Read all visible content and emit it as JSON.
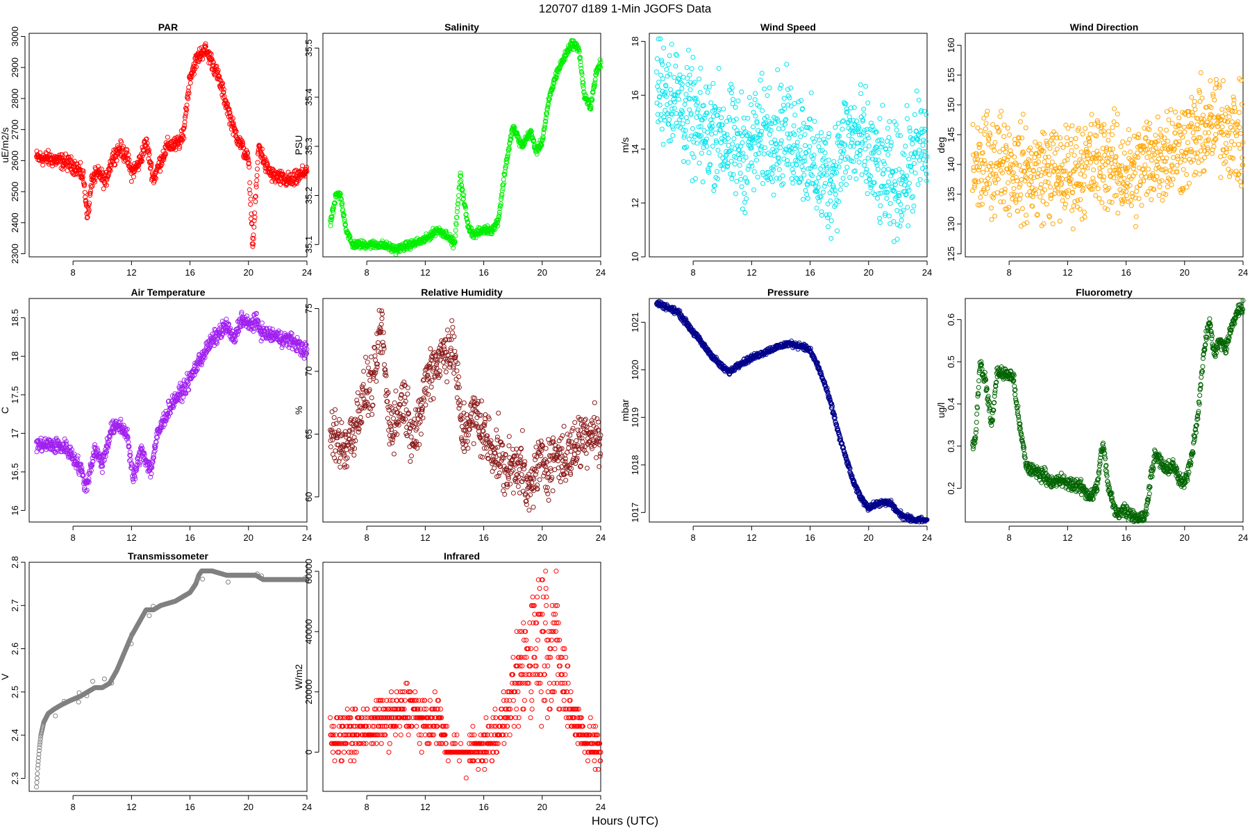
{
  "figure": {
    "title": "120707    d189    1-Min  JGOFS Data",
    "xlabel": "Hours (UTC)"
  },
  "chart_data": [
    {
      "type": "scatter",
      "title": "PAR",
      "ylabel": "uE/m2/s",
      "xlim": [
        5,
        24
      ],
      "xticks": [
        8,
        12,
        16,
        20,
        24
      ],
      "ylim": [
        2290,
        3010
      ],
      "yticks": [
        2300,
        2400,
        2500,
        2600,
        2700,
        2800,
        2900,
        3000
      ],
      "color": "#ff0000",
      "noise": 12,
      "x": [
        5.5,
        6.5,
        7.5,
        8.2,
        8.7,
        9.0,
        9.3,
        9.8,
        10.2,
        10.7,
        11.2,
        11.7,
        12.0,
        12.5,
        13.0,
        13.5,
        14.0,
        14.5,
        15.0,
        15.5,
        16.0,
        16.5,
        17.0,
        17.5,
        18.0,
        18.5,
        19.0,
        19.5,
        20.0,
        20.3,
        20.7,
        21.2,
        21.7,
        22.3,
        23.0,
        23.5,
        24.0
      ],
      "y": [
        2610,
        2605,
        2595,
        2580,
        2550,
        2420,
        2540,
        2560,
        2530,
        2610,
        2640,
        2610,
        2560,
        2590,
        2660,
        2540,
        2600,
        2650,
        2650,
        2670,
        2870,
        2930,
        2960,
        2920,
        2860,
        2780,
        2700,
        2650,
        2600,
        2320,
        2650,
        2580,
        2550,
        2540,
        2535,
        2550,
        2570
      ]
    },
    {
      "type": "scatter",
      "title": "Salinity",
      "ylabel": "PSU",
      "xlim": [
        5,
        24
      ],
      "xticks": [
        8,
        12,
        16,
        20,
        24
      ],
      "ylim": [
        35.075,
        35.53
      ],
      "yticks": [
        35.1,
        35.2,
        35.3,
        35.4,
        35.5
      ],
      "color": "#00ee00",
      "noise": 0.004,
      "x": [
        5.5,
        5.9,
        6.2,
        6.6,
        7.0,
        8.0,
        9.0,
        10.0,
        11.0,
        12.0,
        12.8,
        13.5,
        14.0,
        14.4,
        14.9,
        15.3,
        16.0,
        16.6,
        17.0,
        17.5,
        18.0,
        18.6,
        19.2,
        19.6,
        20.0,
        20.5,
        21.0,
        21.5,
        22.0,
        22.5,
        22.9,
        23.3,
        23.7,
        24.0
      ],
      "y": [
        35.14,
        35.2,
        35.2,
        35.13,
        35.1,
        35.1,
        35.1,
        35.09,
        35.1,
        35.11,
        35.13,
        35.12,
        35.1,
        35.24,
        35.14,
        35.12,
        35.13,
        35.13,
        35.15,
        35.26,
        35.34,
        35.3,
        35.33,
        35.29,
        35.31,
        35.4,
        35.45,
        35.48,
        35.51,
        35.5,
        35.4,
        35.38,
        35.45,
        35.47
      ]
    },
    {
      "type": "scatter",
      "title": "Wind Speed",
      "ylabel": "m/s",
      "xlim": [
        5,
        24
      ],
      "xticks": [
        8,
        12,
        16,
        20,
        24
      ],
      "ylim": [
        10,
        18.3
      ],
      "yticks": [
        10,
        12,
        14,
        16,
        18
      ],
      "color": "#00e5ee",
      "noise": 1.0,
      "x": [
        5.5,
        6.5,
        7.5,
        8.5,
        9.5,
        10.5,
        11.5,
        12.5,
        13.5,
        14.5,
        15.5,
        16.5,
        17.5,
        18.5,
        19.5,
        20.5,
        21.5,
        22.5,
        23.5,
        24.0
      ],
      "y": [
        16.3,
        16.2,
        15.4,
        14.6,
        14.8,
        14.2,
        13.9,
        14.4,
        14.7,
        14.6,
        14.2,
        13.1,
        12.9,
        14.4,
        14.2,
        13.3,
        12.7,
        13.0,
        14.1,
        14.0
      ]
    },
    {
      "type": "scatter",
      "title": "Wind Direction",
      "ylabel": "deg",
      "xlim": [
        5,
        24
      ],
      "xticks": [
        8,
        12,
        16,
        20,
        24
      ],
      "ylim": [
        124.5,
        162
      ],
      "yticks": [
        125,
        130,
        135,
        140,
        145,
        150,
        155,
        160
      ],
      "color": "#ffa500",
      "noise": 4.0,
      "x": [
        5.5,
        6.5,
        7.5,
        8.5,
        9.5,
        10.5,
        11.5,
        12.5,
        13.5,
        14.5,
        15.5,
        16.5,
        17.5,
        18.5,
        19.5,
        20.5,
        21.5,
        22.5,
        23.5,
        24.0
      ],
      "y": [
        139,
        140,
        141,
        139,
        138,
        139,
        138,
        139,
        140,
        141,
        139,
        138,
        141,
        142,
        143,
        144,
        146,
        147,
        145,
        143
      ]
    },
    {
      "type": "scatter",
      "title": "Air Temperature",
      "ylabel": "C",
      "xlim": [
        5,
        24
      ],
      "xticks": [
        8,
        12,
        16,
        20,
        24
      ],
      "ylim": [
        15.85,
        18.75
      ],
      "yticks": [
        16.0,
        16.5,
        17.0,
        17.5,
        18.0,
        18.5
      ],
      "color": "#a020f0",
      "noise": 0.05,
      "x": [
        5.5,
        6.5,
        7.5,
        8.0,
        8.5,
        8.9,
        9.5,
        10.0,
        10.6,
        11.2,
        11.7,
        12.1,
        12.7,
        13.3,
        13.8,
        14.5,
        15.0,
        15.5,
        16.0,
        16.5,
        17.0,
        17.5,
        18.0,
        18.5,
        19.0,
        19.5,
        20.0,
        20.5,
        21.0,
        22.0,
        23.0,
        24.0
      ],
      "y": [
        16.85,
        16.85,
        16.82,
        16.7,
        16.55,
        16.3,
        16.8,
        16.6,
        17.05,
        17.1,
        17.0,
        16.4,
        16.8,
        16.5,
        17.0,
        17.3,
        17.45,
        17.55,
        17.7,
        17.9,
        18.05,
        18.2,
        18.3,
        18.4,
        18.2,
        18.5,
        18.4,
        18.45,
        18.3,
        18.25,
        18.2,
        18.05
      ]
    },
    {
      "type": "scatter",
      "title": "Relative Humidity",
      "ylabel": "%",
      "xlim": [
        5,
        24
      ],
      "xticks": [
        8,
        12,
        16,
        20,
        24
      ],
      "ylim": [
        58,
        75.8
      ],
      "yticks": [
        60,
        65,
        70,
        75
      ],
      "color": "#8b1a1a",
      "noise": 1.1,
      "x": [
        5.5,
        6.0,
        6.5,
        7.0,
        7.5,
        8.0,
        8.5,
        9.0,
        9.5,
        10.0,
        10.5,
        11.0,
        11.5,
        12.0,
        12.5,
        13.0,
        13.5,
        14.0,
        14.5,
        15.0,
        15.5,
        16.0,
        16.5,
        17.0,
        17.5,
        18.0,
        18.5,
        19.0,
        19.5,
        20.0,
        20.5,
        21.0,
        21.5,
        22.0,
        22.5,
        23.0,
        23.5,
        24.0
      ],
      "y": [
        65,
        64.5,
        64,
        65,
        67,
        68.5,
        69,
        74,
        66,
        66,
        68,
        65.5,
        65,
        69,
        70.5,
        71,
        72,
        71.5,
        65,
        66,
        66.5,
        65,
        64,
        63.5,
        62,
        62.5,
        63,
        60,
        62,
        63,
        62.5,
        63.5,
        63,
        63.5,
        64.5,
        65,
        65.5,
        64
      ]
    },
    {
      "type": "scatter",
      "title": "Pressure",
      "ylabel": "mbar",
      "xlim": [
        5,
        24
      ],
      "xticks": [
        8,
        12,
        16,
        20,
        24
      ],
      "ylim": [
        1016.8,
        1021.5
      ],
      "yticks": [
        1017,
        1018,
        1019,
        1020,
        1021
      ],
      "color": "#00008b",
      "noise": 0.03,
      "x": [
        5.5,
        6.0,
        7.0,
        8.0,
        9.0,
        10.0,
        10.5,
        11.0,
        12.0,
        12.7,
        13.5,
        14.5,
        15.5,
        16.0,
        16.5,
        17.0,
        17.5,
        18.0,
        18.5,
        19.0,
        19.5,
        20.0,
        20.7,
        21.5,
        22.0,
        22.5,
        23.0,
        23.5,
        24.0
      ],
      "y": [
        1021.4,
        1021.35,
        1021.2,
        1020.8,
        1020.4,
        1020.05,
        1019.95,
        1020.1,
        1020.25,
        1020.35,
        1020.45,
        1020.55,
        1020.5,
        1020.4,
        1020.1,
        1019.7,
        1019.2,
        1018.6,
        1018.1,
        1017.6,
        1017.3,
        1017.1,
        1017.2,
        1017.2,
        1017.0,
        1016.9,
        1016.85,
        1016.85,
        1016.75
      ]
    },
    {
      "type": "scatter",
      "title": "Fluorometry",
      "ylabel": "ug/l",
      "xlim": [
        5,
        24
      ],
      "xticks": [
        8,
        12,
        16,
        20,
        24
      ],
      "ylim": [
        0.12,
        0.65
      ],
      "yticks": [
        0.2,
        0.3,
        0.4,
        0.5,
        0.6
      ],
      "color": "#006400",
      "noise": 0.008,
      "x": [
        5.5,
        5.7,
        6.0,
        6.4,
        6.8,
        7.2,
        7.6,
        8.0,
        8.3,
        8.7,
        9.2,
        9.8,
        10.5,
        11.0,
        11.5,
        12.0,
        12.5,
        13.0,
        13.5,
        14.0,
        14.4,
        14.8,
        15.3,
        15.8,
        16.3,
        16.8,
        17.3,
        17.7,
        18.0,
        18.4,
        18.8,
        19.2,
        19.6,
        20.0,
        20.5,
        21.0,
        21.3,
        21.7,
        22.0,
        22.4,
        22.8,
        23.2,
        23.6,
        24.0
      ],
      "y": [
        0.3,
        0.32,
        0.5,
        0.45,
        0.35,
        0.48,
        0.47,
        0.47,
        0.46,
        0.35,
        0.25,
        0.24,
        0.23,
        0.21,
        0.22,
        0.21,
        0.21,
        0.2,
        0.18,
        0.2,
        0.31,
        0.2,
        0.14,
        0.15,
        0.14,
        0.13,
        0.13,
        0.23,
        0.28,
        0.26,
        0.24,
        0.26,
        0.22,
        0.21,
        0.28,
        0.4,
        0.52,
        0.6,
        0.52,
        0.55,
        0.53,
        0.58,
        0.62,
        0.63
      ]
    },
    {
      "type": "scatter",
      "title": "Transmissometer",
      "ylabel": "V",
      "xlim": [
        5,
        24
      ],
      "xticks": [
        8,
        12,
        16,
        20,
        24
      ],
      "ylim": [
        2.27,
        2.8
      ],
      "yticks": [
        2.3,
        2.4,
        2.5,
        2.6,
        2.7,
        2.8
      ],
      "color": "#808080",
      "noise": 0.0,
      "x": [
        5.5,
        5.6,
        5.7,
        5.8,
        6.0,
        6.3,
        6.7,
        7.2,
        7.8,
        8.5,
        9.0,
        9.5,
        10.0,
        10.5,
        11.0,
        11.5,
        12.0,
        12.5,
        13.0,
        13.5,
        14.0,
        15.0,
        15.5,
        16.0,
        16.4,
        16.6,
        16.8,
        17.5,
        18.5,
        19.5,
        20.5,
        21.0,
        22.0,
        23.0,
        24.0
      ],
      "y": [
        2.28,
        2.33,
        2.37,
        2.4,
        2.43,
        2.45,
        2.46,
        2.47,
        2.48,
        2.49,
        2.5,
        2.51,
        2.51,
        2.52,
        2.55,
        2.59,
        2.63,
        2.66,
        2.69,
        2.69,
        2.7,
        2.71,
        2.72,
        2.73,
        2.75,
        2.77,
        2.78,
        2.78,
        2.77,
        2.77,
        2.77,
        2.76,
        2.76,
        2.76,
        2.76
      ]
    },
    {
      "type": "scatter",
      "title": "Infrared",
      "ylabel": "W/m2",
      "xlim": [
        5,
        24
      ],
      "xticks": [
        8,
        12,
        16,
        20,
        24
      ],
      "ylim": [
        -13000,
        63000
      ],
      "yticks": [
        0,
        20000,
        40000,
        60000
      ],
      "color": "#ff0000",
      "noise": 0.0,
      "quantum": 2860,
      "x": [
        5.5,
        6.5,
        7.5,
        8.5,
        9.5,
        10.5,
        11.0,
        11.5,
        12.0,
        12.5,
        13.0,
        13.5,
        14.0,
        15.0,
        16.0,
        16.5,
        17.0,
        17.5,
        18.0,
        18.5,
        19.0,
        19.5,
        20.0,
        20.5,
        21.0,
        21.5,
        22.0,
        22.5,
        23.0,
        23.5,
        24.0
      ],
      "y": [
        5000,
        6000,
        7000,
        9000,
        11000,
        13000,
        15000,
        12000,
        9000,
        10000,
        11000,
        0,
        0,
        0,
        2000,
        4000,
        8000,
        12000,
        18000,
        25000,
        32000,
        38000,
        40000,
        38000,
        33000,
        22000,
        14000,
        8000,
        5000,
        2000,
        0
      ]
    }
  ]
}
